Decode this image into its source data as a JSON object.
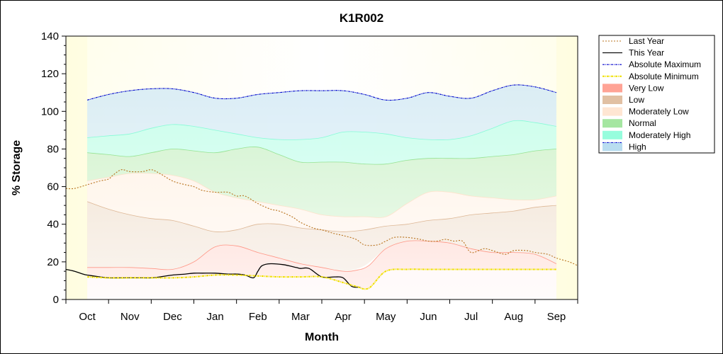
{
  "chart_data": {
    "type": "area",
    "title": "K1R002",
    "xlabel": "Month",
    "ylabel": "% Storage",
    "ylim": [
      0,
      140
    ],
    "yticks": [
      0,
      20,
      40,
      60,
      80,
      100,
      120,
      140
    ],
    "x_categories": [
      "Oct",
      "Nov",
      "Dec",
      "Jan",
      "Feb",
      "Mar",
      "Apr",
      "May",
      "Jun",
      "Jul",
      "Aug",
      "Sep"
    ],
    "x_index_range": [
      -0.5,
      11.5
    ],
    "legend_position": "right",
    "grid": false,
    "bands": [
      {
        "name": "Very Low",
        "color": "#ff8c7a",
        "x": [
          0,
          0.5,
          1,
          1.5,
          2,
          2.5,
          3,
          3.5,
          4,
          4.5,
          5,
          5.5,
          6,
          6.3,
          6.6,
          7,
          7.5,
          8,
          8.5,
          9,
          9.5,
          10,
          10.5,
          11
        ],
        "lower": [
          12,
          11.5,
          11.5,
          11.5,
          11.5,
          12,
          13,
          13,
          12.5,
          12,
          12,
          12,
          9,
          7,
          6,
          15,
          16,
          16,
          16,
          16,
          16,
          16,
          16,
          16
        ],
        "upper": [
          17,
          17,
          17,
          16.5,
          16,
          20,
          28,
          28.5,
          25,
          22,
          19,
          17,
          15,
          15.5,
          18,
          27,
          31,
          31,
          30,
          27,
          25,
          25,
          24,
          19
        ]
      },
      {
        "name": "Low",
        "color": "#d9b08c",
        "x": [
          0,
          0.5,
          1,
          1.5,
          2,
          2.5,
          3,
          3.5,
          4,
          4.5,
          5,
          5.5,
          6,
          6.5,
          7,
          7.5,
          8,
          8.5,
          9,
          9.5,
          10,
          10.5,
          11
        ],
        "lower": [
          17,
          17,
          17,
          16.5,
          16,
          20,
          28,
          28.5,
          25,
          22,
          19,
          17,
          15,
          18,
          27,
          31,
          31,
          30,
          27,
          25,
          25,
          24,
          19
        ],
        "upper": [
          52,
          48,
          45,
          43,
          42,
          39,
          36,
          37,
          40,
          40,
          38,
          37,
          36,
          37,
          39,
          40,
          42,
          43,
          45,
          46,
          47,
          49,
          50
        ]
      },
      {
        "name": "Moderately Low",
        "color": "#ffe0c8",
        "x": [
          0,
          0.5,
          1,
          1.5,
          2,
          2.5,
          3,
          3.5,
          4,
          4.5,
          5,
          5.5,
          6,
          6.5,
          7,
          7.5,
          8,
          8.5,
          9,
          9.5,
          10,
          10.5,
          11
        ],
        "lower": [
          52,
          48,
          45,
          43,
          42,
          39,
          36,
          37,
          40,
          40,
          38,
          37,
          36,
          37,
          39,
          40,
          42,
          43,
          45,
          46,
          47,
          49,
          50
        ],
        "upper": [
          63,
          65,
          67,
          67,
          66,
          63,
          57,
          54,
          52,
          50,
          48,
          45,
          44,
          44,
          44,
          51,
          57,
          57,
          55,
          54,
          53,
          53,
          55
        ]
      },
      {
        "name": "Normal",
        "color": "#8ee08a",
        "x": [
          0,
          0.5,
          1,
          1.5,
          2,
          2.5,
          3,
          3.5,
          4,
          4.5,
          5,
          5.5,
          6,
          6.5,
          7,
          7.5,
          8,
          8.5,
          9,
          9.5,
          10,
          10.5,
          11
        ],
        "lower": [
          63,
          65,
          67,
          67,
          66,
          63,
          57,
          54,
          52,
          50,
          48,
          45,
          44,
          44,
          44,
          51,
          57,
          57,
          55,
          54,
          53,
          53,
          55
        ],
        "upper": [
          78,
          77,
          76,
          78,
          80,
          79,
          78,
          80,
          81,
          77,
          73,
          73,
          73,
          72,
          72,
          74,
          75,
          75,
          75,
          76,
          77,
          79,
          80
        ]
      },
      {
        "name": "Moderately High",
        "color": "#7cfcd4",
        "x": [
          0,
          0.5,
          1,
          1.5,
          2,
          2.5,
          3,
          3.5,
          4,
          4.5,
          5,
          5.5,
          6,
          6.5,
          7,
          7.5,
          8,
          8.5,
          9,
          9.5,
          10,
          10.5,
          11
        ],
        "lower": [
          78,
          77,
          76,
          78,
          80,
          79,
          78,
          80,
          81,
          77,
          73,
          73,
          73,
          72,
          72,
          74,
          75,
          75,
          75,
          76,
          77,
          79,
          80
        ],
        "upper": [
          86,
          87,
          88,
          91,
          93,
          92,
          90,
          88,
          86,
          85,
          85,
          86,
          89,
          89,
          88,
          86,
          85,
          85,
          87,
          91,
          95,
          94,
          92
        ]
      },
      {
        "name": "High",
        "color": "#a8d4ec",
        "x": [
          0,
          0.5,
          1,
          1.5,
          2,
          2.5,
          3,
          3.5,
          4,
          4.5,
          5,
          5.5,
          6,
          6.5,
          7,
          7.5,
          8,
          8.5,
          9,
          9.5,
          10,
          10.5,
          11
        ],
        "lower": [
          86,
          87,
          88,
          91,
          93,
          92,
          90,
          88,
          86,
          85,
          85,
          86,
          89,
          89,
          88,
          86,
          85,
          85,
          87,
          91,
          95,
          94,
          92
        ],
        "upper": [
          106,
          109,
          111,
          112,
          112,
          110,
          107,
          107,
          109,
          110,
          111,
          111,
          111,
          109,
          106,
          107,
          110,
          108,
          107,
          111,
          114,
          113,
          110
        ]
      }
    ],
    "series": [
      {
        "name": "Last Year",
        "color": "#b8721c",
        "style": "dotted",
        "x": [
          -0.5,
          -0.3,
          0,
          0.3,
          0.5,
          0.6,
          0.8,
          1,
          1.3,
          1.5,
          1.7,
          2,
          2.3,
          2.5,
          2.7,
          3,
          3.3,
          3.5,
          3.7,
          4,
          4.3,
          4.5,
          4.8,
          5,
          5.3,
          5.5,
          5.8,
          6,
          6.3,
          6.5,
          6.8,
          7,
          7.2,
          7.5,
          7.8,
          8,
          8.2,
          8.4,
          8.6,
          8.8,
          9,
          9.3,
          9.5,
          9.8,
          10,
          10.3,
          10.5,
          10.8,
          11,
          11.3,
          11.5
        ],
        "y": [
          59,
          59,
          61,
          63,
          64,
          66,
          69,
          68,
          68,
          69,
          67,
          63,
          61,
          60,
          58,
          57,
          57,
          55,
          55,
          51,
          48,
          47,
          44,
          41,
          38,
          37,
          35,
          34,
          32,
          29,
          29,
          31,
          33,
          33,
          32,
          31,
          31,
          32,
          31,
          31,
          25,
          27,
          26,
          24,
          26,
          26,
          25,
          24,
          22,
          20,
          18
        ]
      },
      {
        "name": "This Year",
        "color": "#000000",
        "style": "solid",
        "x": [
          -0.5,
          -0.3,
          -0.1,
          0,
          0.3,
          0.5,
          0.8,
          1,
          1.3,
          1.5,
          1.7,
          2,
          2.3,
          2.5,
          2.7,
          3,
          3.3,
          3.5,
          3.7,
          3.9,
          4,
          4.1,
          4.3,
          4.6,
          4.9,
          5,
          5.2,
          5.5,
          5.8,
          6,
          6.2,
          6.4
        ],
        "y": [
          16,
          15,
          13.5,
          13,
          12,
          11.5,
          11.5,
          11.5,
          11.5,
          11.5,
          12,
          13,
          13.5,
          14,
          14,
          14,
          13.5,
          13.5,
          13,
          11.5,
          15,
          18,
          19,
          18.5,
          17,
          16.5,
          16.5,
          12,
          12,
          11.5,
          7,
          6.5
        ]
      },
      {
        "name": "Absolute Maximum",
        "color": "#0000cc",
        "style": "dashdot",
        "x": [
          0,
          0.5,
          1,
          1.5,
          2,
          2.5,
          3,
          3.5,
          4,
          4.5,
          5,
          5.5,
          6,
          6.5,
          7,
          7.5,
          8,
          8.5,
          9,
          9.5,
          10,
          10.5,
          11
        ],
        "y": [
          106,
          109,
          111,
          112,
          112,
          110,
          107,
          107,
          109,
          110,
          111,
          111,
          111,
          109,
          106,
          107,
          110,
          108,
          107,
          111,
          114,
          113,
          110
        ]
      },
      {
        "name": "Absolute Minimum",
        "color": "#f0e000",
        "style": "dashdot",
        "x": [
          0,
          0.5,
          1,
          1.5,
          2,
          2.5,
          3,
          3.5,
          4,
          4.5,
          5,
          5.5,
          6,
          6.3,
          6.6,
          7,
          7.5,
          8,
          8.5,
          9,
          9.5,
          10,
          10.5,
          11
        ],
        "y": [
          12,
          11.5,
          11.5,
          11.5,
          11.5,
          12,
          13,
          13,
          12.5,
          12,
          12,
          12,
          9,
          7,
          6,
          15,
          16,
          16,
          16,
          16,
          16,
          16,
          16,
          16
        ]
      }
    ],
    "legend": [
      "Last Year",
      "This Year",
      "Absolute Maximum",
      "Absolute Minimum",
      "Very Low",
      "Low",
      "Moderately Low",
      "Normal",
      "Moderately High",
      "High"
    ]
  }
}
